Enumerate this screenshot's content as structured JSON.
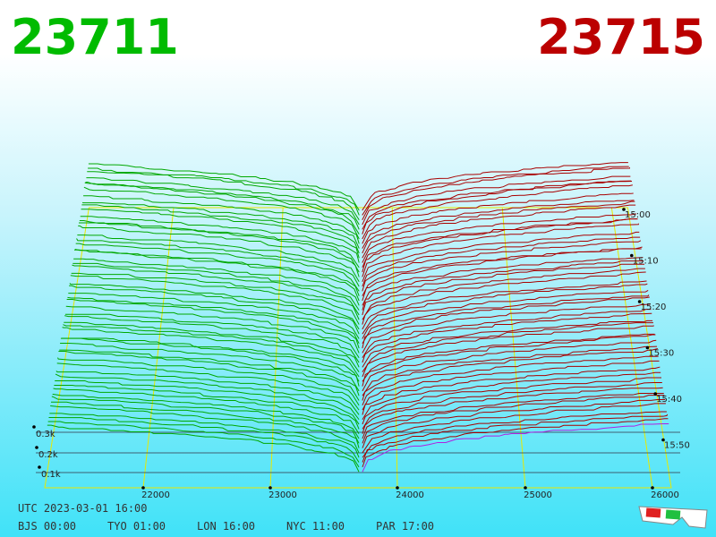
{
  "header": {
    "bid": "23711",
    "ask": "23715"
  },
  "price_axis": {
    "ticks": [
      "22000",
      "23000",
      "24000",
      "25000",
      "26000"
    ]
  },
  "volume_axis": {
    "ticks": [
      "0.1k",
      "0.2k",
      "0.3k"
    ]
  },
  "time_axis": {
    "ticks": [
      "15:00",
      "15:10",
      "15:20",
      "15:30",
      "15:40",
      "15:50"
    ]
  },
  "footer": {
    "utc": "UTC 2023-03-01 16:00",
    "zones": [
      "BJS 00:00",
      "TYO 01:00",
      "LON 16:00",
      "NYC 11:00",
      "PAR 17:00"
    ]
  }
}
